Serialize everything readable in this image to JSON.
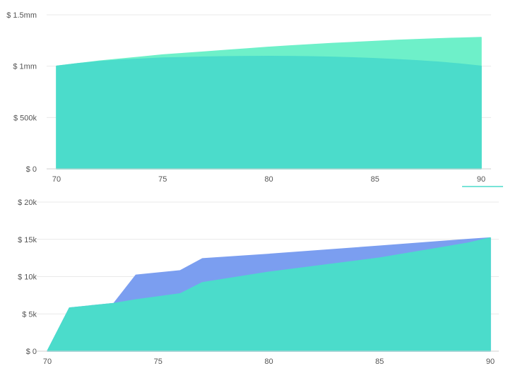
{
  "chart_data": [
    {
      "type": "area",
      "title": "",
      "xlabel": "",
      "ylabel": "",
      "x": [
        70,
        71,
        72,
        73,
        74,
        75,
        76,
        77,
        78,
        79,
        80,
        81,
        82,
        83,
        84,
        85,
        86,
        87,
        88,
        89,
        90
      ],
      "xticks": [
        70,
        75,
        80,
        85,
        90
      ],
      "xtick_labels": [
        "70",
        "75",
        "80",
        "85",
        "90"
      ],
      "xlim": [
        70,
        90
      ],
      "ylim": [
        0,
        1500000
      ],
      "yticks": [
        0,
        500000,
        1000000,
        1500000
      ],
      "ytick_labels": [
        "$ 0",
        "$ 500k",
        "$ 1mm",
        "$ 1.5mm"
      ],
      "grid": true,
      "series": [
        {
          "color": "#6ef0c9",
          "values": [
            1000000,
            1025000,
            1050000,
            1070000,
            1090000,
            1110000,
            1125000,
            1140000,
            1155000,
            1170000,
            1185000,
            1198000,
            1210000,
            1222000,
            1232000,
            1242000,
            1252000,
            1260000,
            1268000,
            1274000,
            1280000
          ]
        },
        {
          "color": "#4bdccb",
          "values": [
            1000000,
            1025000,
            1045000,
            1060000,
            1070000,
            1080000,
            1085000,
            1090000,
            1093000,
            1095000,
            1096000,
            1095000,
            1092000,
            1088000,
            1082000,
            1074000,
            1065000,
            1054000,
            1040000,
            1022000,
            1000000
          ]
        }
      ]
    },
    {
      "type": "area",
      "title": "",
      "xlabel": "",
      "ylabel": "",
      "x": [
        70,
        71,
        73,
        74,
        76,
        77,
        80,
        85,
        89,
        90
      ],
      "xticks": [
        70,
        75,
        80,
        85,
        90
      ],
      "xtick_labels": [
        "70",
        "75",
        "80",
        "85",
        "90"
      ],
      "xlim": [
        70,
        90
      ],
      "ylim": [
        0,
        20000
      ],
      "yticks": [
        0,
        5000,
        10000,
        15000,
        20000
      ],
      "ytick_labels": [
        "$ 0",
        "$ 5k",
        "$ 10k",
        "$ 15k",
        "$ 20k"
      ],
      "grid": true,
      "series": [
        {
          "color": "#7b9ef0",
          "values": [
            0,
            5800,
            6400,
            10200,
            10800,
            12400,
            13000,
            14100,
            15000,
            15200
          ]
        },
        {
          "color": "#4bdccb",
          "values": [
            0,
            5800,
            6400,
            6900,
            7700,
            9200,
            10600,
            12500,
            14500,
            15200
          ]
        }
      ]
    }
  ]
}
